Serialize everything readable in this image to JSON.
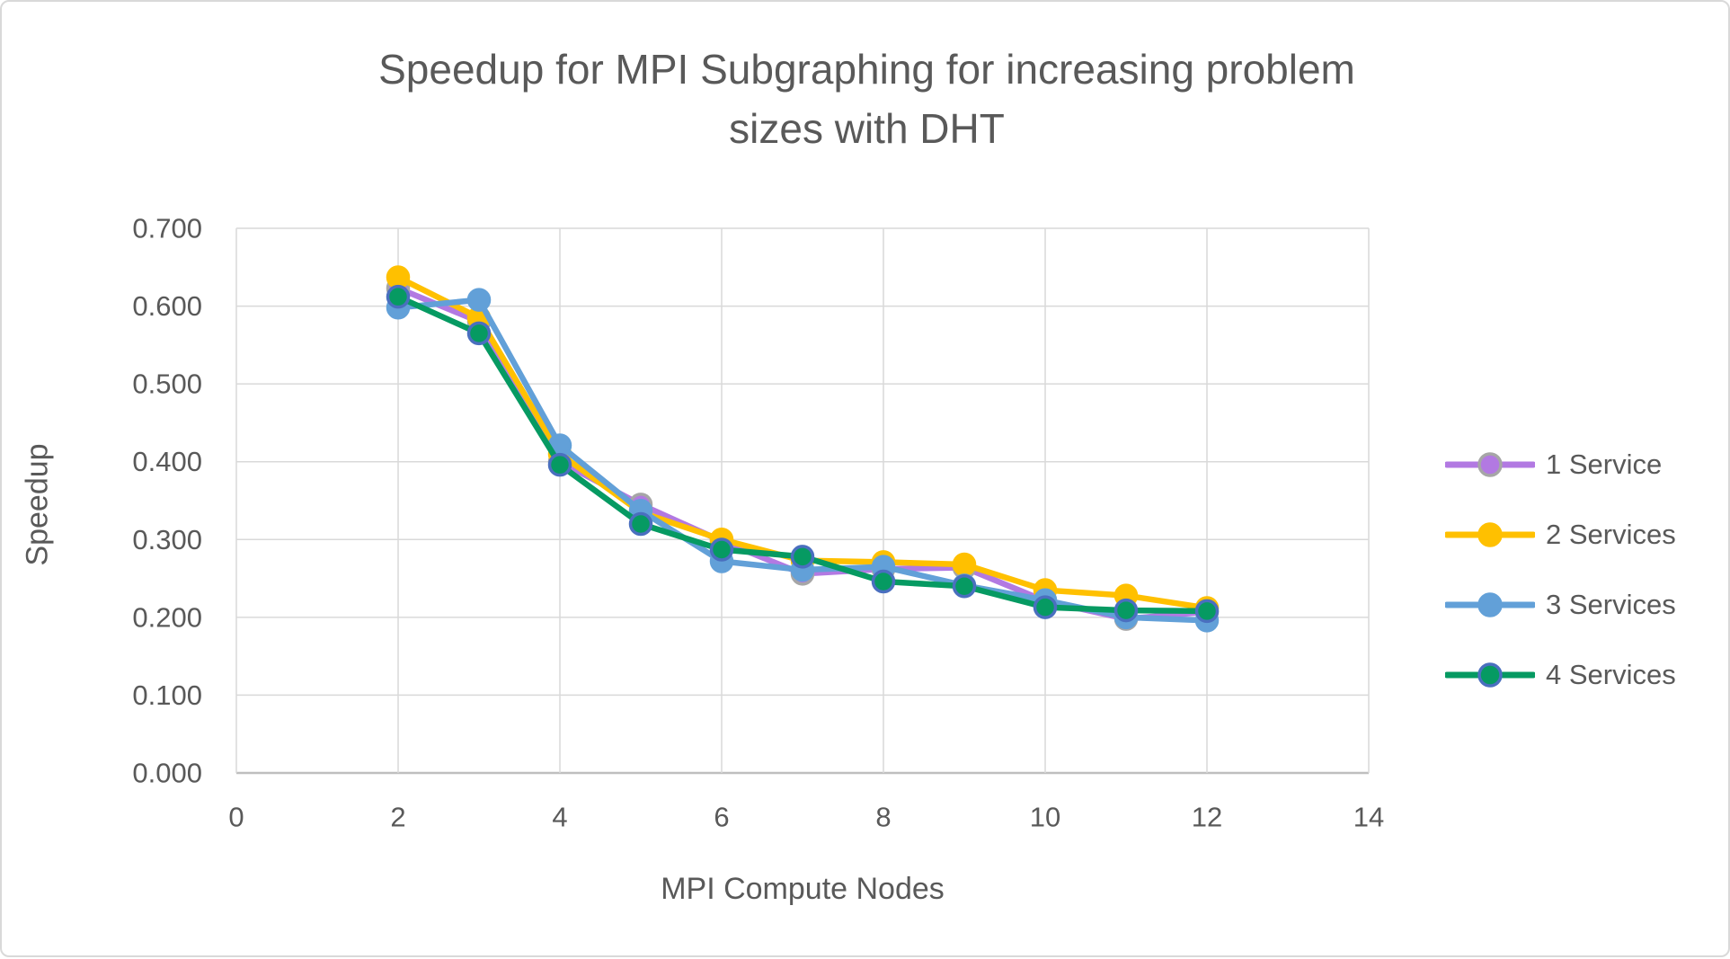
{
  "chart_data": {
    "type": "line",
    "title": "Speedup for MPI Subgraphing for increasing problem sizes with DHT",
    "title_lines": [
      "Speedup for MPI Subgraphing for increasing problem",
      "sizes with DHT"
    ],
    "xlabel": "MPI Compute Nodes",
    "ylabel": "Speedup",
    "xlim": [
      0,
      14
    ],
    "xtick_step": 2,
    "ylim": [
      0.0,
      0.7
    ],
    "ytick_step": 0.1,
    "ytick_decimals": 3,
    "grid": true,
    "legend_position": "right",
    "x": [
      2,
      3,
      4,
      5,
      6,
      7,
      8,
      9,
      10,
      11,
      12
    ],
    "series": [
      {
        "name": "1 Service",
        "color": "#b279e2",
        "marker_border": "#a6a6a6",
        "values": [
          0.623,
          0.58,
          0.4,
          0.345,
          0.298,
          0.256,
          0.262,
          0.264,
          0.221,
          0.198,
          0.207
        ]
      },
      {
        "name": "2 Services",
        "color": "#ffc000",
        "marker_border": "#ffc000",
        "values": [
          0.637,
          0.585,
          0.41,
          0.335,
          0.3,
          0.273,
          0.271,
          0.268,
          0.235,
          0.228,
          0.212
        ]
      },
      {
        "name": "3 Services",
        "color": "#62a0d8",
        "marker_border": "#62a0d8",
        "values": [
          0.598,
          0.608,
          0.421,
          0.337,
          0.272,
          0.261,
          0.265,
          0.241,
          0.222,
          0.2,
          0.196
        ]
      },
      {
        "name": "4 Services",
        "color": "#069a62",
        "marker_border": "#4a6fbf",
        "values": [
          0.612,
          0.565,
          0.396,
          0.32,
          0.287,
          0.278,
          0.246,
          0.24,
          0.213,
          0.209,
          0.208
        ]
      }
    ]
  },
  "ui_colors": {
    "text": "#595959",
    "gridline": "#d9d9d9",
    "axis_line": "#bfbfbf"
  }
}
